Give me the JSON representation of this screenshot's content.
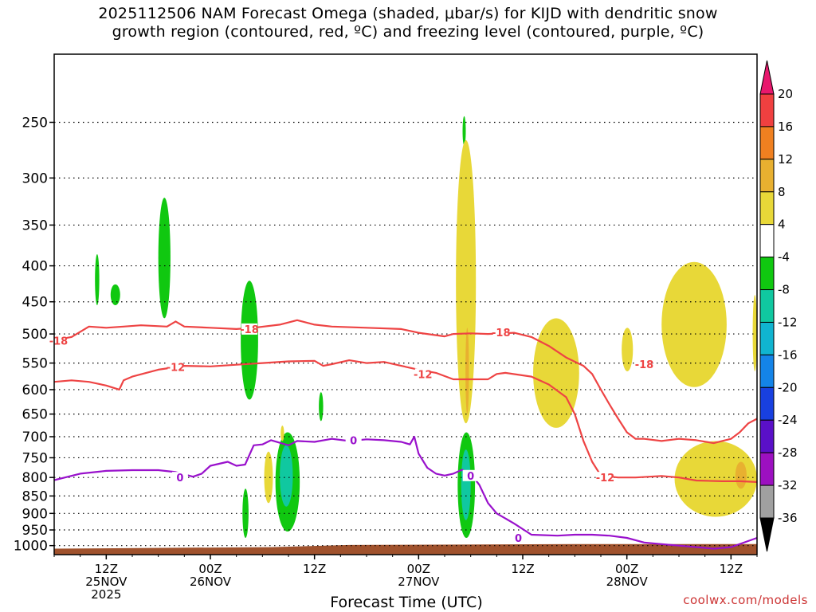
{
  "title": {
    "line1": "2025112506 NAM Forecast Omega (shaded, μbar/s) for KIJD with dendritic snow",
    "line2": "growth region (contoured, red, ºC) and freezing level (contoured, purple, ºC)"
  },
  "credit": "coolwx.com/models",
  "colors": {
    "dgz_contour": "#ee4444",
    "freezing_contour": "#9911cc",
    "ground": "#a0522d",
    "gridline": "#000000"
  },
  "chart_data": {
    "type": "heatmap",
    "xlabel": "Forecast Time (UTC)",
    "ylabel": "",
    "x_units": "forecast hour from 2025-11-25 06Z",
    "xlim": [
      0,
      81
    ],
    "y_scale": "log-pressure",
    "ylim": [
      1030,
      200
    ],
    "y_ticks": [
      250,
      300,
      350,
      400,
      450,
      500,
      550,
      600,
      650,
      700,
      750,
      800,
      850,
      900,
      950,
      1000
    ],
    "grid": true,
    "x_ticks": [
      {
        "hour": 6,
        "lines": [
          "12Z",
          "25NOV",
          "2025"
        ]
      },
      {
        "hour": 18,
        "lines": [
          "00Z",
          "26NOV"
        ]
      },
      {
        "hour": 30,
        "lines": [
          "12Z"
        ]
      },
      {
        "hour": 42,
        "lines": [
          "00Z",
          "27NOV"
        ]
      },
      {
        "hour": 54,
        "lines": [
          "12Z"
        ]
      },
      {
        "hour": 66,
        "lines": [
          "00Z",
          "28NOV"
        ]
      },
      {
        "hour": 78,
        "lines": [
          "12Z"
        ]
      }
    ],
    "colorbar": {
      "labels": [
        "20",
        "16",
        "12",
        "8",
        "4",
        "-4",
        "-8",
        "-12",
        "-16",
        "-20",
        "-24",
        "-28",
        "-32",
        "-36"
      ],
      "colors": [
        "#e8186d",
        "#f04040",
        "#f08020",
        "#e8b030",
        "#e8d838",
        "#ffffff",
        "#10c810",
        "#10c8a0",
        "#10b4d0",
        "#1484e8",
        "#1840e0",
        "#5a10c8",
        "#9c10c0",
        "#a0a0a0",
        "#000000"
      ]
    },
    "series": [
      {
        "name": "-18",
        "kind": "dgz",
        "label_at": [
          [
            0.5,
            511
          ],
          [
            22.5,
            492
          ],
          [
            51.5,
            497
          ],
          [
            68,
            552
          ]
        ],
        "points": [
          [
            0,
            510
          ],
          [
            2,
            505
          ],
          [
            4,
            488
          ],
          [
            6,
            490
          ],
          [
            8,
            488
          ],
          [
            10,
            486
          ],
          [
            13,
            488
          ],
          [
            14,
            480
          ],
          [
            15,
            488
          ],
          [
            18,
            490
          ],
          [
            21,
            492
          ],
          [
            23,
            490
          ],
          [
            26,
            485
          ],
          [
            28,
            478
          ],
          [
            30,
            485
          ],
          [
            32,
            488
          ],
          [
            36,
            490
          ],
          [
            40,
            492
          ],
          [
            42,
            498
          ],
          [
            45,
            504
          ],
          [
            46,
            500
          ],
          [
            48,
            499
          ],
          [
            50,
            500
          ],
          [
            53,
            498
          ],
          [
            55,
            505
          ],
          [
            57,
            520
          ],
          [
            59,
            540
          ],
          [
            61,
            555
          ],
          [
            62,
            570
          ],
          [
            63,
            600
          ],
          [
            64,
            630
          ],
          [
            65,
            660
          ],
          [
            66,
            690
          ],
          [
            67,
            705
          ],
          [
            68,
            705
          ],
          [
            70,
            710
          ],
          [
            72,
            705
          ],
          [
            74,
            708
          ],
          [
            76,
            715
          ],
          [
            78,
            705
          ],
          [
            79,
            690
          ],
          [
            80,
            670
          ],
          [
            81,
            660
          ]
        ]
      },
      {
        "name": "-12",
        "kind": "dgz",
        "label_at": [
          [
            14,
            557
          ],
          [
            42.5,
            570
          ],
          [
            63.5,
            800
          ]
        ],
        "points": [
          [
            0,
            585
          ],
          [
            2,
            582
          ],
          [
            4,
            585
          ],
          [
            6,
            592
          ],
          [
            7.5,
            600
          ],
          [
            8,
            582
          ],
          [
            9,
            575
          ],
          [
            12,
            562
          ],
          [
            15,
            555
          ],
          [
            18,
            556
          ],
          [
            21,
            553
          ],
          [
            24,
            550
          ],
          [
            27,
            547
          ],
          [
            30,
            546
          ],
          [
            31,
            555
          ],
          [
            32,
            552
          ],
          [
            34,
            545
          ],
          [
            36,
            550
          ],
          [
            38,
            548
          ],
          [
            40,
            555
          ],
          [
            42,
            562
          ],
          [
            44,
            568
          ],
          [
            46,
            580
          ],
          [
            50,
            580
          ],
          [
            51,
            570
          ],
          [
            52,
            568
          ],
          [
            55,
            575
          ],
          [
            57,
            590
          ],
          [
            59,
            615
          ],
          [
            60,
            650
          ],
          [
            61,
            710
          ],
          [
            62,
            760
          ],
          [
            63,
            795
          ],
          [
            65,
            800
          ],
          [
            67,
            800
          ],
          [
            70,
            796
          ],
          [
            72,
            800
          ],
          [
            74,
            808
          ],
          [
            77,
            810
          ],
          [
            79,
            810
          ],
          [
            81,
            812
          ]
        ]
      },
      {
        "name": "0",
        "kind": "freezing",
        "label_at": [
          [
            14.5,
            800
          ],
          [
            34.5,
            708
          ],
          [
            53.5,
            975
          ],
          [
            48,
            795
          ]
        ],
        "points": [
          [
            0,
            807
          ],
          [
            3,
            790
          ],
          [
            6,
            783
          ],
          [
            9,
            781
          ],
          [
            12,
            781
          ],
          [
            14,
            786
          ],
          [
            16,
            798
          ],
          [
            17,
            790
          ],
          [
            18,
            770
          ],
          [
            20,
            760
          ],
          [
            21,
            770
          ],
          [
            22,
            767
          ],
          [
            23,
            720
          ],
          [
            24,
            718
          ],
          [
            25,
            708
          ],
          [
            27,
            720
          ],
          [
            28,
            710
          ],
          [
            30,
            712
          ],
          [
            32,
            705
          ],
          [
            34,
            710
          ],
          [
            36,
            706
          ],
          [
            38,
            708
          ],
          [
            40,
            712
          ],
          [
            41,
            718
          ],
          [
            41.5,
            700
          ],
          [
            42,
            740
          ],
          [
            43,
            775
          ],
          [
            44,
            790
          ],
          [
            45,
            795
          ],
          [
            46,
            790
          ],
          [
            47,
            780
          ],
          [
            48,
            790
          ],
          [
            49,
            820
          ],
          [
            50,
            870
          ],
          [
            51,
            900
          ],
          [
            53,
            930
          ],
          [
            55,
            965
          ],
          [
            58,
            968
          ],
          [
            60,
            965
          ],
          [
            62,
            965
          ],
          [
            64,
            968
          ],
          [
            66,
            975
          ],
          [
            68,
            990
          ],
          [
            70,
            995
          ],
          [
            72,
            1000
          ],
          [
            76,
            1010
          ],
          [
            78,
            1005
          ],
          [
            80,
            985
          ],
          [
            81,
            975
          ]
        ]
      }
    ],
    "shaded_regions": [
      {
        "category": "-4 to -8",
        "hour": [
          4.7,
          5.2
        ],
        "pressure": [
          385,
          455
        ]
      },
      {
        "category": "-4 to -8",
        "hour": [
          6.5,
          7.6
        ],
        "pressure": [
          425,
          455
        ]
      },
      {
        "category": "-4 to -8",
        "hour": [
          12.0,
          13.4
        ],
        "pressure": [
          320,
          475
        ]
      },
      {
        "category": "-4 to -8",
        "hour": [
          21.5,
          23.5
        ],
        "pressure": [
          420,
          620
        ]
      },
      {
        "category": "-4 to -8",
        "hour": [
          30.5,
          31.0
        ],
        "pressure": [
          605,
          665
        ]
      },
      {
        "category": "-4 to -8",
        "hour": [
          25.5,
          28.3
        ],
        "pressure": [
          690,
          955
        ]
      },
      {
        "category": "-4 to -8",
        "hour": [
          21.7,
          22.4
        ],
        "pressure": [
          830,
          975
        ]
      },
      {
        "category": "-4 to -8",
        "hour": [
          47.1,
          47.4
        ],
        "pressure": [
          245,
          270
        ]
      },
      {
        "category": "-4 to -8",
        "hour": [
          46.5,
          48.5
        ],
        "pressure": [
          690,
          975
        ]
      },
      {
        "category": "-8 to -12",
        "hour": [
          26.0,
          27.5
        ],
        "pressure": [
          720,
          880
        ]
      },
      {
        "category": "-8 to -12",
        "hour": [
          46.9,
          48.0
        ],
        "pressure": [
          730,
          920
        ]
      },
      {
        "category": "4 to 8",
        "hour": [
          46.3,
          48.6
        ],
        "pressure": [
          265,
          670
        ]
      },
      {
        "category": "4 to 8",
        "hour": [
          24.2,
          25.2
        ],
        "pressure": [
          735,
          870
        ]
      },
      {
        "category": "4 to 8",
        "hour": [
          26.1,
          26.5
        ],
        "pressure": [
          675,
          710
        ]
      },
      {
        "category": "4 to 8",
        "hour": [
          55.2,
          60.5
        ],
        "pressure": [
          475,
          680
        ]
      },
      {
        "category": "4 to 8",
        "hour": [
          65.4,
          66.7
        ],
        "pressure": [
          490,
          565
        ]
      },
      {
        "category": "4 to 8",
        "hour": [
          70.0,
          77.5
        ],
        "pressure": [
          395,
          595
        ]
      },
      {
        "category": "4 to 8",
        "hour": [
          80.5,
          81.0
        ],
        "pressure": [
          440,
          565
        ]
      },
      {
        "category": "4 to 8",
        "hour": [
          71.5,
          81.0
        ],
        "pressure": [
          710,
          910
        ]
      },
      {
        "category": "8 to 12",
        "hour": [
          47.4,
          47.8
        ],
        "pressure": [
          490,
          650
        ]
      },
      {
        "category": "8 to 12",
        "hour": [
          78.5,
          79.8
        ],
        "pressure": [
          760,
          830
        ]
      }
    ],
    "ground": {
      "pressure_top": [
        [
          0,
          1010
        ],
        [
          25,
          1005
        ],
        [
          34,
          998
        ],
        [
          60,
          995
        ],
        [
          81,
          995
        ]
      ]
    }
  }
}
